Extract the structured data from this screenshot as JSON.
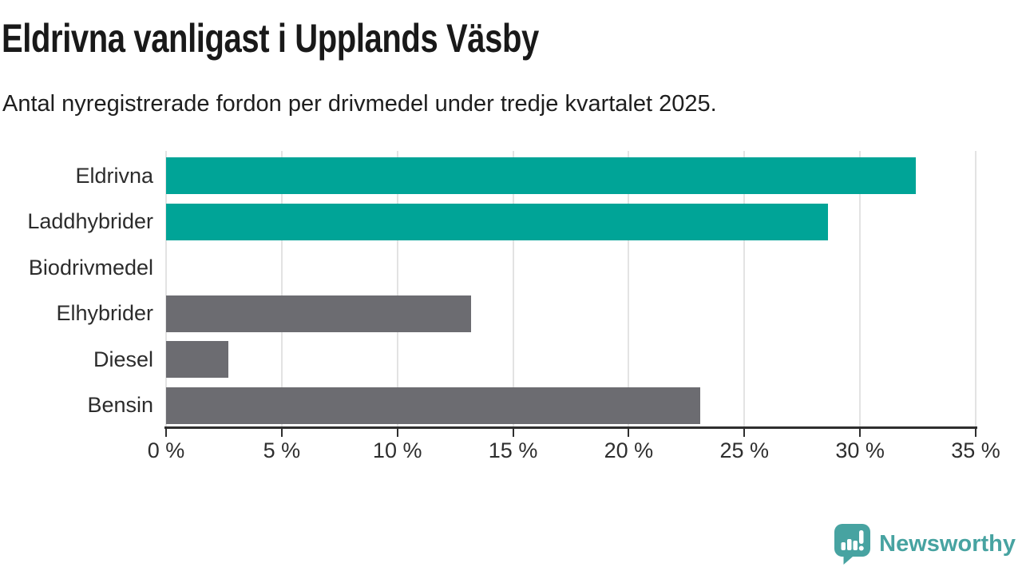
{
  "header": {
    "title": "Eldrivna vanligast i Upplands Väsby",
    "subtitle": "Antal nyregistrerade fordon per drivmedel under tredje kvartalet 2025."
  },
  "chart_data": {
    "type": "bar",
    "orientation": "horizontal",
    "title": "Eldrivna vanligast i Upplands Väsby",
    "subtitle": "Antal nyregistrerade fordon per drivmedel under tredje kvartalet 2025.",
    "categories": [
      "Eldrivna",
      "Laddhybrider",
      "Biodrivmedel",
      "Elhybrider",
      "Diesel",
      "Bensin"
    ],
    "values": [
      32.4,
      28.6,
      0,
      13.2,
      2.7,
      23.1
    ],
    "unit": "%",
    "xlim": [
      0,
      35
    ],
    "x_ticks": [
      0,
      5,
      10,
      15,
      20,
      25,
      30,
      35
    ],
    "x_tick_labels": [
      "0 %",
      "5 %",
      "10 %",
      "15 %",
      "20 %",
      "25 %",
      "30 %",
      "35 %"
    ],
    "grid": true,
    "legend": false,
    "bar_colors": [
      "#00a497",
      "#00a497",
      "#6c6c71",
      "#6c6c71",
      "#6c6c71",
      "#6c6c71"
    ],
    "highlight_color": "#00a497",
    "default_color": "#6c6c71",
    "grid_color": "#e3e3e3",
    "axis_color": "#2e2e2e"
  },
  "footer": {
    "logo_text": "Newsworthy",
    "logo_color": "#47a3a1"
  }
}
